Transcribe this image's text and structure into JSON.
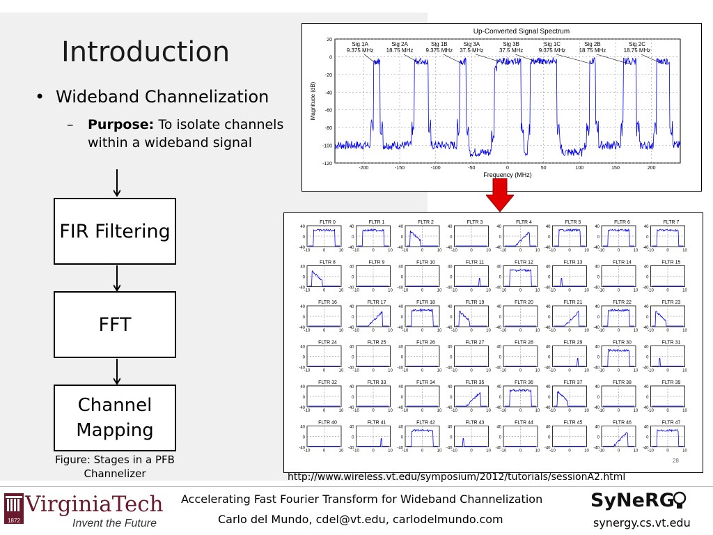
{
  "slide": {
    "title": "Introduction",
    "bullet": "Wideband Channelization",
    "sub_bold": "Purpose:",
    "sub_text": " To isolate channels within a wideband signal",
    "sub_dash": "–",
    "bullet_dot": "•"
  },
  "stages": [
    "FIR Filtering",
    "FFT",
    "Channel Mapping"
  ],
  "caption": "Figure: Stages in a PFB Channelizer",
  "spectrum": {
    "title": "Up-Converted Signal Spectrum",
    "xlabel": "Frequency (MHz)",
    "ylabel": "Magnitude (dB)",
    "yticks": [
      "20",
      "0",
      "-20",
      "-40",
      "-60",
      "-80",
      "-100",
      "-120"
    ],
    "xticks": [
      "-200",
      "-150",
      "-100",
      "-50",
      "0",
      "50",
      "100",
      "150",
      "200"
    ],
    "signals": [
      {
        "name": "Sig 1A",
        "bw": "9.375 MHz"
      },
      {
        "name": "Sig 2A",
        "bw": "18.75 MHz"
      },
      {
        "name": "Sig 1B",
        "bw": "9.375 MHz"
      },
      {
        "name": "Sig 3A",
        "bw": "37.5 MHz"
      },
      {
        "name": "Sig 3B",
        "bw": "37.5 MHz"
      },
      {
        "name": "Sig 1C",
        "bw": "9.375 MHz"
      },
      {
        "name": "Sig 2B",
        "bw": "18.75 MHz"
      },
      {
        "name": "Sig 2C",
        "bw": "18.75 MHz"
      }
    ]
  },
  "filters": {
    "labels": [
      "FLTR 0",
      "FLTR 1",
      "FLTR 2",
      "FLTR 3",
      "FLTR 4",
      "FLTR 5",
      "FLTR 6",
      "FLTR 7",
      "FLTR 8",
      "FLTR 9",
      "FLTR 10",
      "FLTR 11",
      "FLTR 12",
      "FLTR 13",
      "FLTR 14",
      "FLTR 15",
      "FLTR 16",
      "FLTR 17",
      "FLTR 18",
      "FLTR 19",
      "FLTR 20",
      "FLTR 21",
      "FLTR 22",
      "FLTR 23",
      "FLTR 24",
      "FLTR 25",
      "FLTR 26",
      "FLTR 27",
      "FLTR 28",
      "FLTR 29",
      "FLTR 30",
      "FLTR 31",
      "FLTR 32",
      "FLTR 33",
      "FLTR 34",
      "FLTR 35",
      "FLTR 36",
      "FLTR 37",
      "FLTR 38",
      "FLTR 39",
      "FLTR 40",
      "FLTR 41",
      "FLTR 42",
      "FLTR 43",
      "FLTR 44",
      "FLTR 45",
      "FLTR 46",
      "FLTR 47"
    ],
    "yticks": [
      "40",
      "0",
      "-40"
    ],
    "xticks": [
      "-10",
      "0",
      "10"
    ],
    "page_number": "28"
  },
  "url": "http://www.wireless.vt.edu/symposium/2012/tutorials/sessionA2.html",
  "footer": {
    "title": "Accelerating Fast Fourier Transform for Wideband Channelization",
    "author": "Carlo del Mundo, cdel@vt.edu, carlodelmundo.com",
    "vt_name": "VirginiaTech",
    "vt_tag": "Invent the Future",
    "vt_year": "1872",
    "synergy": "SyNeRG",
    "synergy_url": "synergy.cs.vt.edu"
  },
  "colors": {
    "signal": "#0000ee",
    "arrow": "#e00000",
    "vt_maroon": "#6a1a2d",
    "vt_orange": "#d9661f"
  }
}
